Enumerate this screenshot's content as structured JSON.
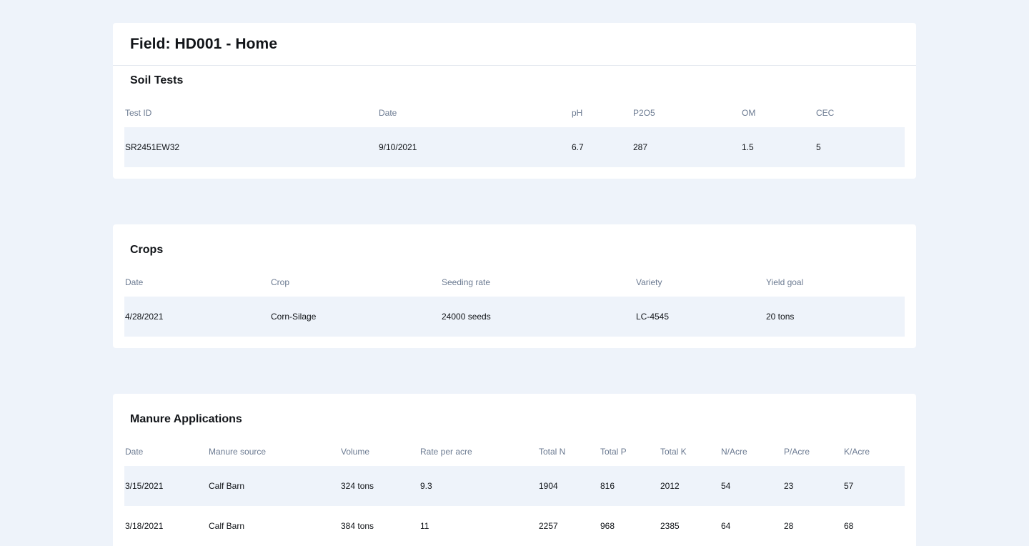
{
  "page": {
    "title": "Field: HD001 - Home"
  },
  "soil_tests": {
    "title": "Soil Tests",
    "columns": [
      "Test ID",
      "Date",
      "pH",
      "P2O5",
      "OM",
      "CEC"
    ],
    "rows": [
      [
        "SR2451EW32",
        "9/10/2021",
        "6.7",
        "287",
        "1.5",
        "5"
      ]
    ]
  },
  "crops": {
    "title": "Crops",
    "columns": [
      "Date",
      "Crop",
      "Seeding rate",
      "Variety",
      "Yield goal"
    ],
    "rows": [
      [
        "4/28/2021",
        "Corn-Silage",
        "24000 seeds",
        "LC-4545",
        "20 tons"
      ]
    ]
  },
  "manure": {
    "title": "Manure Applications",
    "columns": [
      "Date",
      "Manure source",
      "Volume",
      "Rate per acre",
      "Total N",
      "Total P",
      "Total K",
      "N/Acre",
      "P/Acre",
      "K/Acre"
    ],
    "rows": [
      [
        "3/15/2021",
        "Calf Barn",
        "324 tons",
        "9.3",
        "1904",
        "816",
        "2012",
        "54",
        "23",
        "57"
      ],
      [
        "3/18/2021",
        "Calf Barn",
        "384 tons",
        "11",
        "2257",
        "968",
        "2385",
        "64",
        "28",
        "68"
      ]
    ]
  },
  "colors": {
    "page_background": "#eef3fa",
    "card_background": "#ffffff",
    "header_text": "#6b7a91",
    "body_text": "#111418",
    "striped_row": "#eef3fa"
  }
}
